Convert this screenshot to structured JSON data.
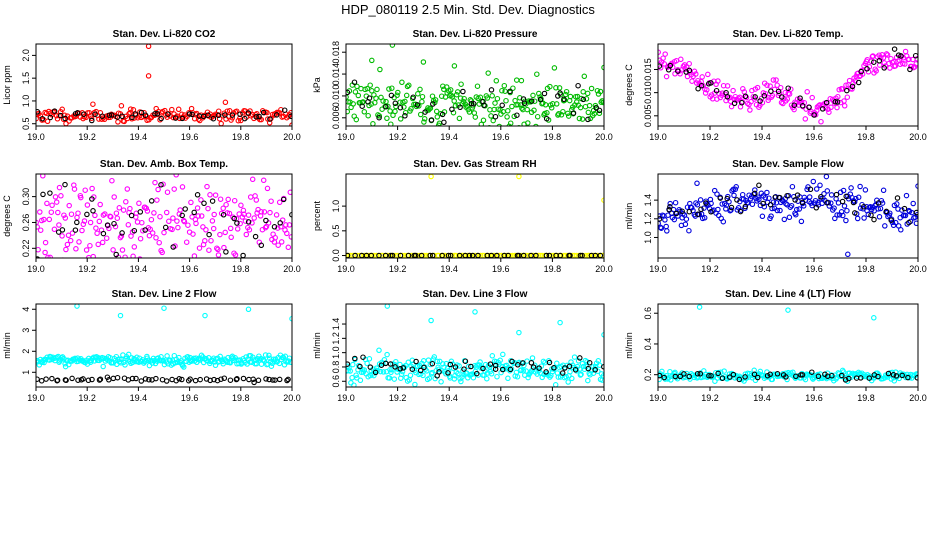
{
  "figure": {
    "title": "HDP_080119  2.5 Min. Std. Dev. Diagnostics"
  },
  "chart_data": [
    {
      "type": "scatter",
      "title": "Stan. Dev. Li-820 CO2",
      "ylabel": "Licor ppm",
      "xlabel": "",
      "xlim": [
        19.0,
        20.0
      ],
      "ylim": [
        0.45,
        2.25
      ],
      "xticks": [
        "19.0",
        "19.2",
        "19.4",
        "19.6",
        "19.8",
        "20.0"
      ],
      "xtick_values": [
        19.0,
        19.2,
        19.4,
        19.6,
        19.8,
        20.0
      ],
      "yticks": [
        "0.5",
        "1.0",
        "1.5",
        "2.0"
      ],
      "ytick_values": [
        0.5,
        1.0,
        1.5,
        2.0
      ],
      "color": "#ff0000",
      "secondary_color": "#000000",
      "base": {
        "seed": 11,
        "count": 180,
        "center": 0.68,
        "spread": 0.07
      },
      "overlay": {
        "seed": 12,
        "count": 45,
        "center": 0.68,
        "spread": 0.06
      },
      "outliers": [
        {
          "x": 19.44,
          "y": 2.2
        },
        {
          "x": 19.44,
          "y": 1.55
        },
        {
          "x": 19.74,
          "y": 0.97
        },
        {
          "x": 19.37,
          "y": 0.82
        },
        {
          "x": 20.0,
          "y": 0.47
        }
      ]
    },
    {
      "type": "scatter",
      "title": "Stan. Dev. Li-820 Pressure",
      "ylabel": "kPa",
      "xlabel": "",
      "xlim": [
        19.0,
        20.0
      ],
      "ylim": [
        0.0045,
        0.0195
      ],
      "xticks": [
        "19.0",
        "19.2",
        "19.4",
        "19.6",
        "19.8",
        "20.0"
      ],
      "xtick_values": [
        19.0,
        19.2,
        19.4,
        19.6,
        19.8,
        20.0
      ],
      "yticks": [
        "0.006",
        "0.010",
        "0.014",
        "0.018"
      ],
      "ytick_values": [
        0.006,
        0.01,
        0.014,
        0.018
      ],
      "color": "#00bb00",
      "secondary_color": "#000000",
      "base": {
        "seed": 21,
        "count": 260,
        "center": 0.0085,
        "spread": 0.0022
      },
      "overlay": {
        "seed": 22,
        "count": 45,
        "center": 0.0085,
        "spread": 0.0018
      },
      "outliers": [
        {
          "x": 19.18,
          "y": 0.0193
        },
        {
          "x": 19.1,
          "y": 0.0165
        },
        {
          "x": 19.3,
          "y": 0.0162
        },
        {
          "x": 19.42,
          "y": 0.0155
        },
        {
          "x": 20.0,
          "y": 0.0152
        },
        {
          "x": 19.68,
          "y": 0.0128
        }
      ]
    },
    {
      "type": "scatter",
      "title": "Stan. Dev. Li-820 Temp.",
      "ylabel": "degrees C",
      "xlabel": "",
      "xlim": [
        19.0,
        20.0
      ],
      "ylim": [
        0.0028,
        0.0205
      ],
      "xticks": [
        "19.0",
        "19.2",
        "19.4",
        "19.6",
        "19.8",
        "20.0"
      ],
      "xtick_values": [
        19.0,
        19.2,
        19.4,
        19.6,
        19.8,
        20.0
      ],
      "yticks": [
        "0.005",
        "0.010",
        "0.015"
      ],
      "ytick_values": [
        0.005,
        0.01,
        0.015
      ],
      "color": "#ff00ff",
      "secondary_color": "#000000",
      "trend": [
        [
          19.0,
          0.016
        ],
        [
          19.1,
          0.0155
        ],
        [
          19.18,
          0.0115
        ],
        [
          19.3,
          0.0085
        ],
        [
          19.45,
          0.01
        ],
        [
          19.6,
          0.0065
        ],
        [
          19.7,
          0.009
        ],
        [
          19.8,
          0.015
        ],
        [
          19.9,
          0.0175
        ],
        [
          20.0,
          0.0165
        ]
      ],
      "base": {
        "seed": 31,
        "count": 230,
        "center": 0,
        "spread": 0.0013
      },
      "overlay": {
        "seed": 32,
        "count": 45,
        "center": 0,
        "spread": 0.0011
      },
      "outliers": []
    },
    {
      "type": "scatter",
      "title": "Stan. Dev. Amb. Box Temp.",
      "ylabel": "degrees C",
      "xlabel": "",
      "xlim": [
        19.0,
        20.0
      ],
      "ylim": [
        0.205,
        0.335
      ],
      "xticks": [
        "19.0",
        "19.2",
        "19.4",
        "19.6",
        "19.8",
        "20.0"
      ],
      "xtick_values": [
        19.0,
        19.2,
        19.4,
        19.6,
        19.8,
        20.0
      ],
      "yticks": [
        "0.22",
        "0.26",
        "0.30"
      ],
      "ytick_values": [
        0.22,
        0.26,
        0.3
      ],
      "color": "#ff00ff",
      "secondary_color": "#000000",
      "base": {
        "seed": 41,
        "count": 240,
        "center": 0.258,
        "spread": 0.034
      },
      "overlay": {
        "seed": 42,
        "count": 45,
        "center": 0.262,
        "spread": 0.03
      },
      "outliers": []
    },
    {
      "type": "scatter",
      "title": "Stan. Dev. Gas Stream RH",
      "ylabel": "percent",
      "xlabel": "",
      "xlim": [
        19.0,
        20.0
      ],
      "ylim": [
        -0.05,
        1.65
      ],
      "xticks": [
        "19.0",
        "19.2",
        "19.4",
        "19.6",
        "19.8",
        "20.0"
      ],
      "xtick_values": [
        19.0,
        19.2,
        19.4,
        19.6,
        19.8,
        20.0
      ],
      "yticks": [
        "0.0",
        "0.5",
        "1.0"
      ],
      "ytick_values": [
        0.0,
        0.5,
        1.0
      ],
      "color": "#ffff00",
      "secondary_color": "#000000",
      "base": {
        "seed": 51,
        "count": 120,
        "center": 0.0,
        "spread": 0.0
      },
      "overlay": {
        "seed": 52,
        "count": 45,
        "center": 0.0,
        "spread": 0.0
      },
      "outliers": [
        {
          "x": 19.33,
          "y": 1.6
        },
        {
          "x": 19.67,
          "y": 1.6
        },
        {
          "x": 20.0,
          "y": 1.12
        }
      ]
    },
    {
      "type": "scatter",
      "title": "Stan. Dev. Sample Flow",
      "ylabel": "ml/min",
      "xlabel": "",
      "xlim": [
        19.0,
        20.0
      ],
      "ylim": [
        0.78,
        1.68
      ],
      "xticks": [
        "19.0",
        "19.2",
        "19.4",
        "19.6",
        "19.8",
        "20.0"
      ],
      "xtick_values": [
        19.0,
        19.2,
        19.4,
        19.6,
        19.8,
        20.0
      ],
      "yticks": [
        "1.0",
        "1.2",
        "1.4"
      ],
      "ytick_values": [
        1.0,
        1.2,
        1.4
      ],
      "color": "#0000dd",
      "secondary_color": "#000000",
      "trend": [
        [
          19.0,
          1.2
        ],
        [
          19.15,
          1.3
        ],
        [
          19.3,
          1.4
        ],
        [
          19.5,
          1.35
        ],
        [
          19.62,
          1.45
        ],
        [
          19.75,
          1.35
        ],
        [
          19.9,
          1.25
        ],
        [
          20.0,
          1.25
        ]
      ],
      "base": {
        "seed": 61,
        "count": 240,
        "center": 0,
        "spread": 0.09
      },
      "overlay": {
        "seed": 62,
        "count": 45,
        "center": 0,
        "spread": 0.08
      },
      "outliers": [
        {
          "x": 19.73,
          "y": 0.82
        },
        {
          "x": 19.15,
          "y": 1.58
        },
        {
          "x": 20.0,
          "y": 1.55
        }
      ]
    },
    {
      "type": "scatter",
      "title": "Stan. Dev. Line 2 Flow",
      "ylabel": "ml/min",
      "xlabel": "",
      "xlim": [
        19.0,
        20.0
      ],
      "ylim": [
        0.3,
        4.25
      ],
      "xticks": [
        "19.0",
        "19.2",
        "19.4",
        "19.6",
        "19.8",
        "20.0"
      ],
      "xtick_values": [
        19.0,
        19.2,
        19.4,
        19.6,
        19.8,
        20.0
      ],
      "yticks": [
        "1",
        "2",
        "3",
        "4"
      ],
      "ytick_values": [
        1,
        2,
        3,
        4
      ],
      "color": "#00ffff",
      "secondary_color": "#000000",
      "base": {
        "seed": 71,
        "count": 260,
        "center": 1.58,
        "spread": 0.12
      },
      "overlay": {
        "seed": 72,
        "count": 60,
        "center": 0.65,
        "spread": 0.04
      },
      "outliers": [
        {
          "x": 19.16,
          "y": 4.15
        },
        {
          "x": 19.33,
          "y": 3.7
        },
        {
          "x": 19.5,
          "y": 4.05
        },
        {
          "x": 19.66,
          "y": 3.7
        },
        {
          "x": 19.83,
          "y": 4.0
        },
        {
          "x": 20.0,
          "y": 3.55
        }
      ]
    },
    {
      "type": "scatter",
      "title": "Stan. Dev. Line 3 Flow",
      "ylabel": "ml/min",
      "xlabel": "",
      "xlim": [
        19.0,
        20.0
      ],
      "ylim": [
        0.52,
        1.68
      ],
      "xticks": [
        "19.0",
        "19.2",
        "19.4",
        "19.6",
        "19.8",
        "20.0"
      ],
      "xtick_values": [
        19.0,
        19.2,
        19.4,
        19.6,
        19.8,
        20.0
      ],
      "yticks": [
        "0.6",
        "0.8",
        "1.0",
        "1.2",
        "1.4"
      ],
      "ytick_values": [
        0.6,
        0.8,
        1.0,
        1.2,
        1.4
      ],
      "color": "#00ffff",
      "secondary_color": "#000000",
      "base": {
        "seed": 81,
        "count": 270,
        "center": 0.76,
        "spread": 0.09
      },
      "overlay": {
        "seed": 82,
        "count": 50,
        "center": 0.8,
        "spread": 0.05
      },
      "outliers": [
        {
          "x": 19.16,
          "y": 1.65
        },
        {
          "x": 19.33,
          "y": 1.45
        },
        {
          "x": 19.5,
          "y": 1.57
        },
        {
          "x": 19.67,
          "y": 1.28
        },
        {
          "x": 19.83,
          "y": 1.42
        },
        {
          "x": 20.0,
          "y": 1.25
        }
      ]
    },
    {
      "type": "scatter",
      "title": "Stan. Dev. Line 4 (LT) Flow",
      "ylabel": "ml/min",
      "xlabel": "",
      "xlim": [
        19.0,
        20.0
      ],
      "ylim": [
        0.12,
        0.66
      ],
      "xticks": [
        "19.0",
        "19.2",
        "19.4",
        "19.6",
        "19.8",
        "20.0"
      ],
      "xtick_values": [
        19.0,
        19.2,
        19.4,
        19.6,
        19.8,
        20.0
      ],
      "yticks": [
        "0.2",
        "0.4",
        "0.6"
      ],
      "ytick_values": [
        0.2,
        0.4,
        0.6
      ],
      "color": "#00ffff",
      "secondary_color": "#000000",
      "base": {
        "seed": 91,
        "count": 230,
        "center": 0.19,
        "spread": 0.015
      },
      "overlay": {
        "seed": 92,
        "count": 45,
        "center": 0.19,
        "spread": 0.012
      },
      "outliers": [
        {
          "x": 19.16,
          "y": 0.64
        },
        {
          "x": 19.5,
          "y": 0.62
        },
        {
          "x": 19.83,
          "y": 0.57
        }
      ]
    }
  ]
}
